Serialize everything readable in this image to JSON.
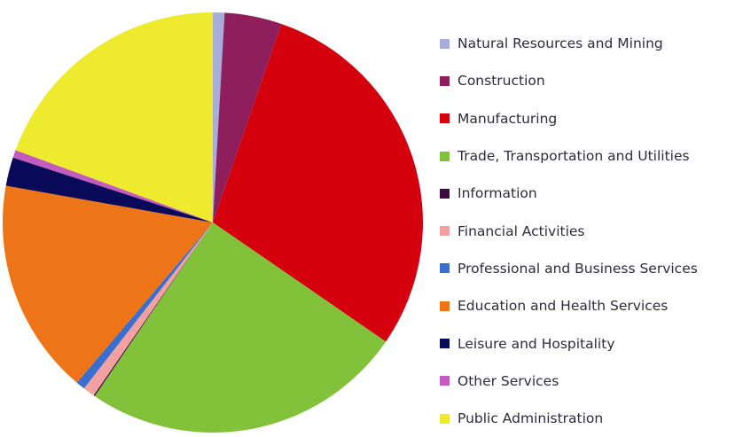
{
  "chart_data": {
    "type": "pie",
    "title": "",
    "legend_position": "right",
    "start_angle_deg": 0,
    "direction": "clockwise",
    "slices": [
      {
        "label": "Natural Resources and Mining",
        "value": 0.9,
        "color": "#a8acd8"
      },
      {
        "label": "Construction",
        "value": 4.4,
        "color": "#8e1e5c"
      },
      {
        "label": "Manufacturing",
        "value": 29.3,
        "color": "#d4000e"
      },
      {
        "label": "Trade, Transportation and Utilities",
        "value": 24.9,
        "color": "#82c23a"
      },
      {
        "label": "Information",
        "value": 0.1,
        "color": "#3a0a40"
      },
      {
        "label": "Financial Activities",
        "value": 0.9,
        "color": "#f2a0a0"
      },
      {
        "label": "Professional and Business Services",
        "value": 0.7,
        "color": "#3a6fcf"
      },
      {
        "label": "Education and Health Services",
        "value": 16.6,
        "color": "#ee7418"
      },
      {
        "label": "Leisure and Hospitality",
        "value": 2.2,
        "color": "#0a0a5a"
      },
      {
        "label": "Other Services",
        "value": 0.6,
        "color": "#c45cc0"
      },
      {
        "label": "Public Administration",
        "value": 19.4,
        "color": "#eeea2e"
      }
    ]
  }
}
